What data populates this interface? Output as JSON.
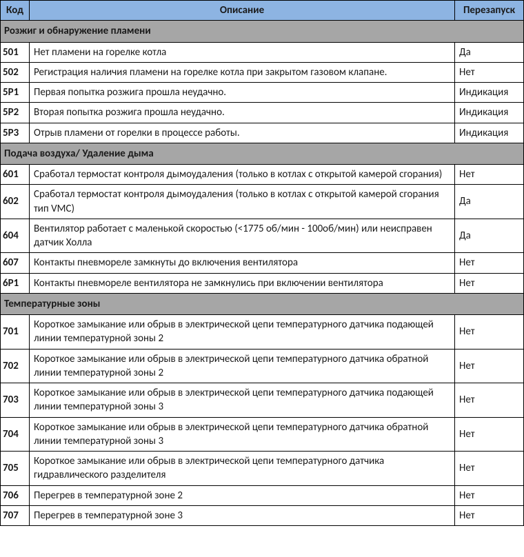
{
  "table": {
    "header_bg": "#8db4e2",
    "section_bg": "#a6a6a6",
    "columns": {
      "code": "Код",
      "description": "Описание",
      "restart": "Перезапуск"
    },
    "sections": [
      {
        "title": "Розжиг и обнаружение пламени",
        "rows": [
          {
            "code": "501",
            "desc": "Нет пламени на горелке котла",
            "restart": "Да"
          },
          {
            "code": "502",
            "desc": "Регистрация наличия пламени на горелке котла при закрытом газовом клапане.",
            "restart": "Нет"
          },
          {
            "code": "5P1",
            "desc": "Первая попытка розжига прошла неудачно.",
            "restart": "Индикация"
          },
          {
            "code": "5P2",
            "desc": "Вторая попытка розжига прошла неудачно.",
            "restart": "Индикация"
          },
          {
            "code": "5P3",
            "desc": "Отрыв пламени от горелки в процессе работы.",
            "restart": "Индикация"
          }
        ]
      },
      {
        "title": "Подача воздуха/ Удаление дыма",
        "rows": [
          {
            "code": "601",
            "desc": "Сработал термостат контроля дымоудаления (только в котлах с открытой камерой сгорания)",
            "restart": "Нет"
          },
          {
            "code": "602",
            "desc": "Сработал термостат контроля дымоудаления (только в котлах с открытой камерой сгорания тип VMC)",
            "restart": "Да"
          },
          {
            "code": "604",
            "desc": "Вентилятор работает с маленькой скоростью (<1775 об/мин - 100об/мин) или неисправен датчик Холла",
            "restart": "Да"
          },
          {
            "code": "607",
            "desc": "Контакты пневмореле замкнуты до включения вентилятора",
            "restart": "Нет"
          },
          {
            "code": "6P1",
            "desc": "Контакты пневмореле вентилятора не замкнулись при включении вентилятора",
            "restart": "Нет"
          }
        ]
      },
      {
        "title": "Температурные зоны",
        "rows": [
          {
            "code": "701",
            "desc": "Короткое замыкание или обрыв в электрической цепи температурного датчика подающей линии температурной зоны 2",
            "restart": "Нет"
          },
          {
            "code": "702",
            "desc": "Короткое замыкание или обрыв в электрической цепи температурного датчика обратной линии температурной зоны 2",
            "restart": "Нет"
          },
          {
            "code": "703",
            "desc": "Короткое замыкание или обрыв в электрической цепи температурного датчика подающей линии температурной зоны 3",
            "restart": "Нет"
          },
          {
            "code": "704",
            "desc": "Короткое замыкание или обрыв в электрической цепи температурного датчика обратной линии температурной зоны 3",
            "restart": "Нет"
          },
          {
            "code": "705",
            "desc": "Короткое замыкание или обрыв в электрической цепи температурного датчика гидравлического разделителя",
            "restart": "Нет"
          },
          {
            "code": "706",
            "desc": "Перегрев в температурной зоне 2",
            "restart": "Нет"
          },
          {
            "code": "707",
            "desc": "Перегрев в температурной зоне 3",
            "restart": "Нет"
          }
        ]
      }
    ]
  }
}
